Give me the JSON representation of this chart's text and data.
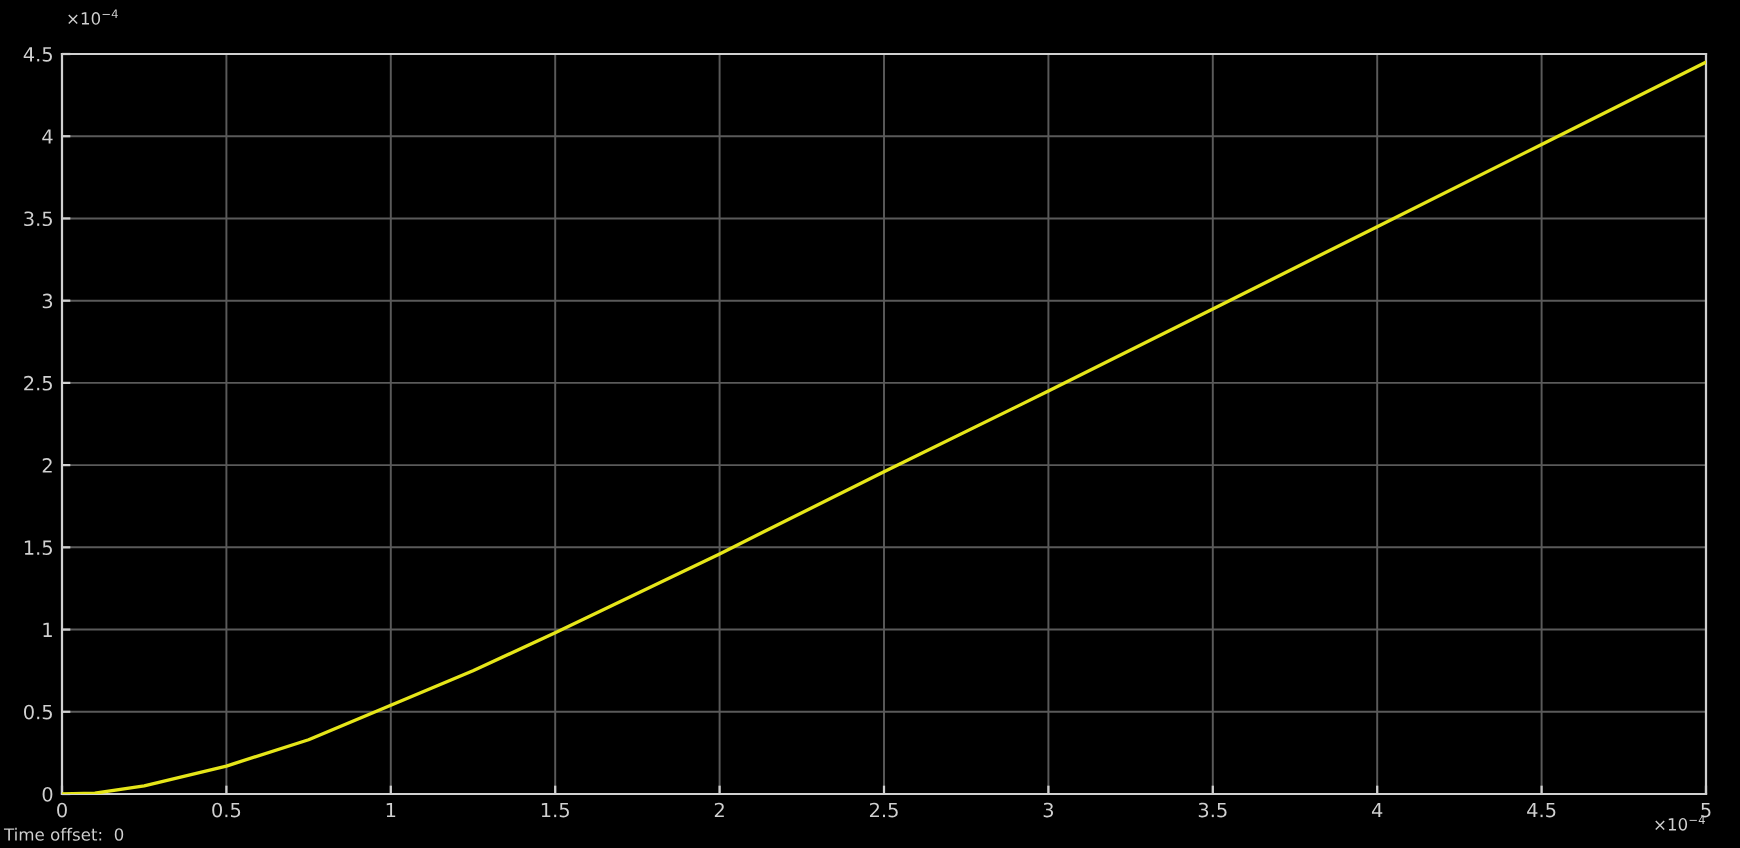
{
  "chart_data": {
    "type": "line",
    "x": [
      0,
      0.1,
      0.25,
      0.5,
      0.75,
      1,
      1.25,
      1.5,
      2,
      2.5,
      3,
      3.5,
      4,
      4.5,
      5
    ],
    "series": [
      {
        "color": "#e6e619",
        "values": [
          0,
          0.005,
          0.05,
          0.17,
          0.33,
          0.54,
          0.75,
          0.98,
          1.46,
          1.96,
          2.45,
          2.95,
          3.45,
          3.95,
          4.45
        ]
      }
    ],
    "xlim": [
      0,
      5
    ],
    "ylim": [
      0,
      4.5
    ],
    "xticks": [
      0,
      0.5,
      1,
      1.5,
      2,
      2.5,
      3,
      3.5,
      4,
      4.5,
      5
    ],
    "yticks": [
      0,
      0.5,
      1,
      1.5,
      2,
      2.5,
      3,
      3.5,
      4,
      4.5
    ],
    "grid": true,
    "annotations": [
      "×10$^{−4}$",
      "×10$^{−4}$",
      "Time offset:  0"
    ]
  }
}
